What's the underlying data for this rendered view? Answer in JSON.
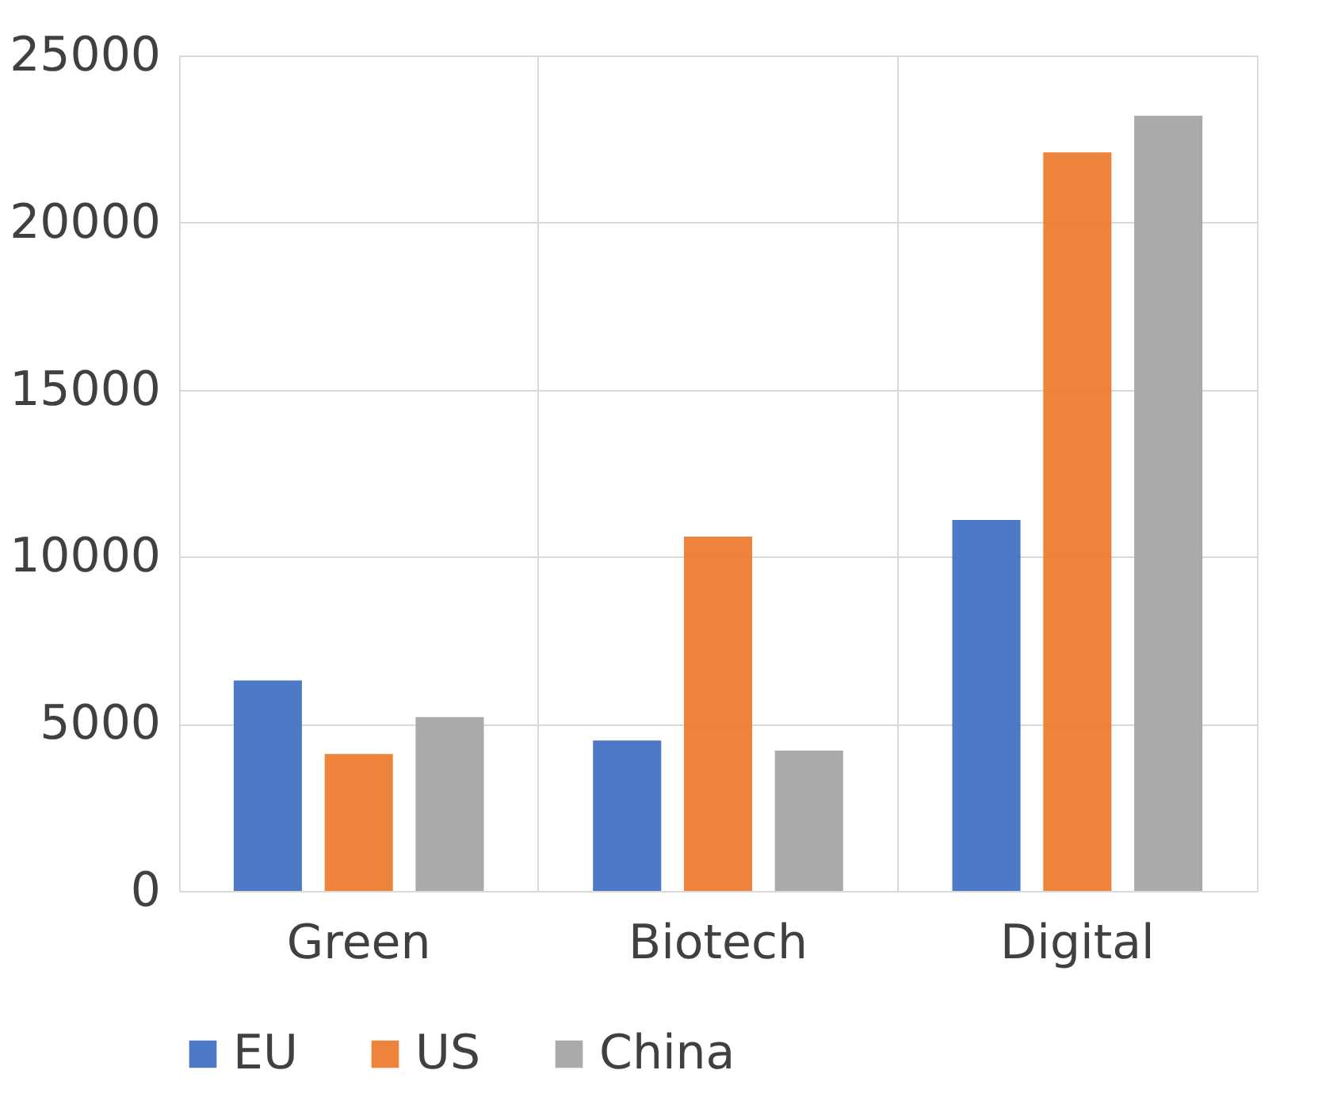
{
  "chart_data": {
    "type": "bar",
    "categories": [
      "Green",
      "Biotech",
      "Digital"
    ],
    "series": [
      {
        "name": "EU",
        "color": "#4472c4",
        "values": [
          6300,
          4500,
          11100
        ]
      },
      {
        "name": "US",
        "color": "#ed7d31",
        "values": [
          4100,
          10600,
          22100
        ]
      },
      {
        "name": "China",
        "color": "#a5a5a5",
        "values": [
          5200,
          4200,
          23200
        ]
      }
    ],
    "ylim": [
      0,
      25000
    ],
    "yticks": [
      0,
      5000,
      10000,
      15000,
      20000,
      25000
    ],
    "grid": true,
    "legend": "bottom"
  }
}
